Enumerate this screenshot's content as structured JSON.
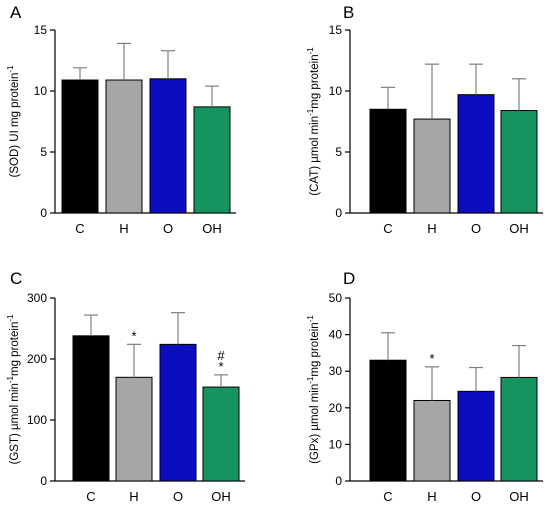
{
  "chart_data": [
    {
      "panel_label": "A",
      "type": "bar",
      "categories": [
        "C",
        "H",
        "O",
        "OH"
      ],
      "values": [
        10.9,
        10.9,
        11.0,
        8.7
      ],
      "errors": [
        1.0,
        3.0,
        2.3,
        1.7
      ],
      "markers": [
        "",
        "",
        "",
        ""
      ],
      "ylabel": "(SOD) UI mg protein",
      "ylabel_sup": "-1",
      "ylabel_parts": [
        "(SOD) UI mg protein"
      ],
      "ylim": [
        0,
        15
      ],
      "yticks": [
        0,
        5,
        10,
        15
      ],
      "ytick_labels": [
        "0",
        "5",
        "10",
        "15"
      ],
      "grid": false
    },
    {
      "panel_label": "B",
      "type": "bar",
      "categories": [
        "C",
        "H",
        "O",
        "OH"
      ],
      "values": [
        8.5,
        7.7,
        9.7,
        8.4
      ],
      "errors": [
        1.8,
        4.5,
        2.5,
        2.6
      ],
      "markers": [
        "",
        "",
        "",
        ""
      ],
      "ylabel": "(CAT) µmol min-1mg protein-1",
      "ylabel_parts": [
        "(CAT) µmol min",
        "mg protein"
      ],
      "ylim": [
        0,
        15
      ],
      "yticks": [
        0,
        5,
        10,
        15
      ],
      "ytick_labels": [
        "0",
        "5",
        "10",
        "15"
      ],
      "grid": false
    },
    {
      "panel_label": "C",
      "type": "bar",
      "categories": [
        "C",
        "H",
        "O",
        "OH"
      ],
      "values": [
        238,
        170,
        224,
        154
      ],
      "errors": [
        34,
        54,
        52,
        20
      ],
      "markers": [
        "",
        "*",
        "",
        "#*"
      ],
      "ylabel": "(GST) µmol min-1mg protein-1",
      "ylabel_parts": [
        "(GST) µmol min",
        "mg protein"
      ],
      "ylim": [
        0,
        300
      ],
      "yticks": [
        0,
        100,
        200,
        300
      ],
      "ytick_labels": [
        "0",
        "100",
        "200",
        "300"
      ],
      "grid": false
    },
    {
      "panel_label": "D",
      "type": "bar",
      "categories": [
        "C",
        "H",
        "O",
        "OH"
      ],
      "values": [
        33,
        22,
        24.5,
        28.3
      ],
      "errors": [
        7.5,
        9.2,
        6.5,
        8.7
      ],
      "markers": [
        "",
        "*",
        "",
        ""
      ],
      "ylabel": "(GPx) µmol min-1mg protein-1",
      "ylabel_parts": [
        "(GPx) µmol min",
        "mg protein"
      ],
      "ylim": [
        0,
        50
      ],
      "yticks": [
        0,
        10,
        20,
        30,
        40,
        50
      ],
      "ytick_labels": [
        "0",
        "10",
        "20",
        "30",
        "40",
        "50"
      ],
      "grid": false
    }
  ],
  "colors": {
    "bars": [
      "#000000",
      "#a6a6a8",
      "#0c0cc0",
      "#159460"
    ],
    "axis": "#000000",
    "error_bar": "#808080"
  }
}
